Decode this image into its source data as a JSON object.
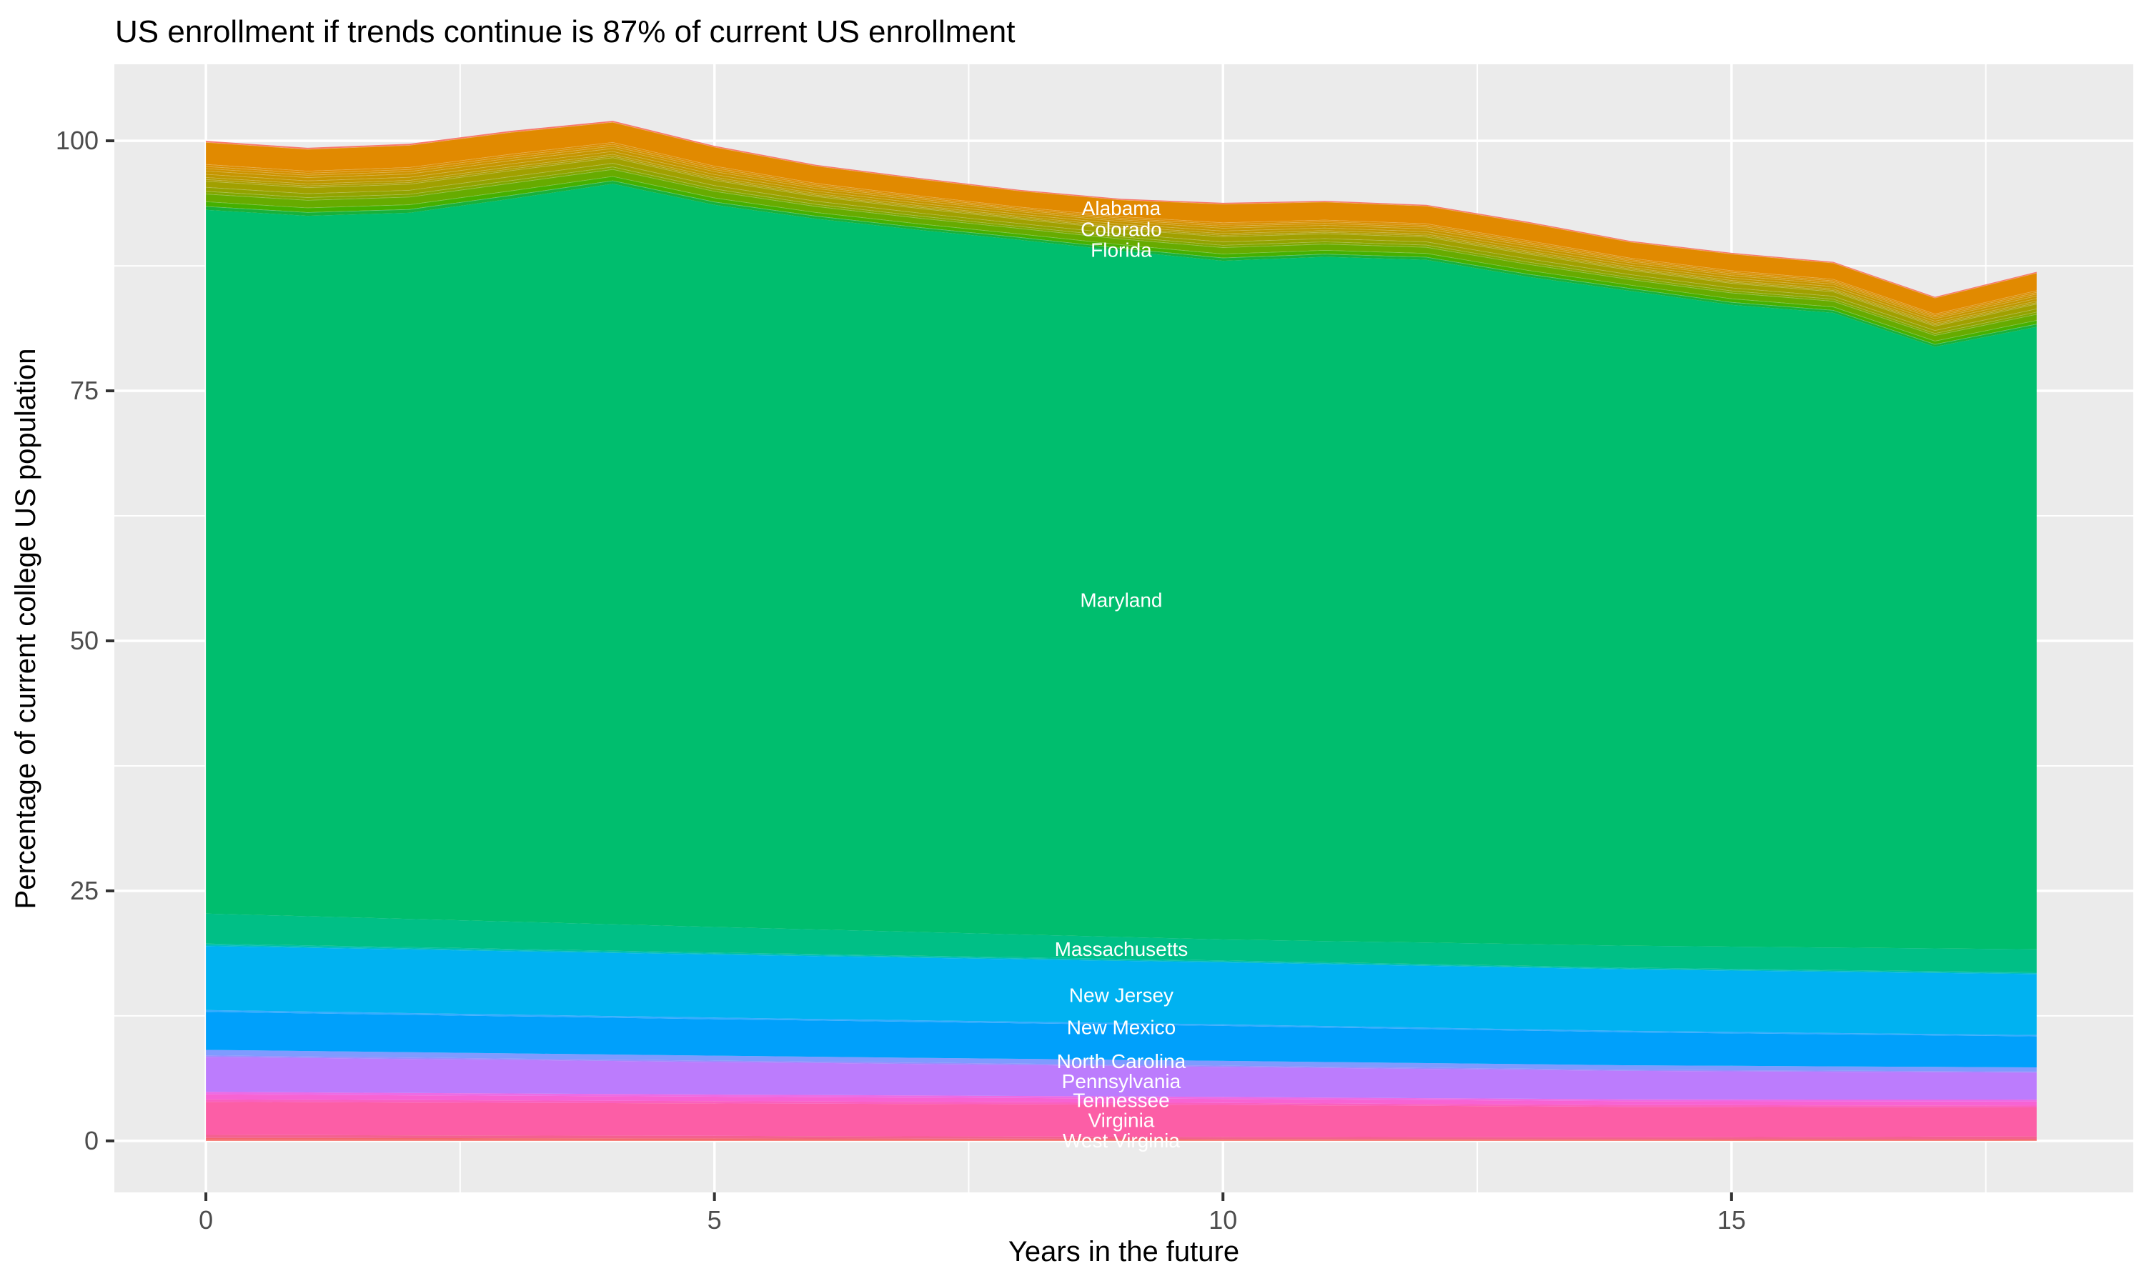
{
  "chart_data": {
    "type": "area",
    "title": "US enrollment if trends continue is 87% of current US enrollment",
    "xlabel": "Years in the future",
    "ylabel": "Percentage of current college US population",
    "x_ticks": [
      0,
      5,
      10,
      15
    ],
    "y_ticks": [
      0,
      25,
      50,
      75,
      100
    ],
    "x_minor": [
      2.5,
      7.5,
      12.5,
      17.5
    ],
    "y_minor": [
      12.5,
      37.5,
      62.5,
      87.5
    ],
    "xlim": [
      -0.9,
      18.95
    ],
    "ylim": [
      -5.15,
      107.65
    ],
    "grid": "on",
    "legend": "none",
    "x": [
      0,
      1,
      2,
      3,
      4,
      5,
      6,
      7,
      8,
      9,
      10,
      11,
      12,
      13,
      14,
      15,
      16,
      17,
      18
    ],
    "total_top": [
      100.0,
      99.3,
      99.7,
      101.0,
      102.0,
      99.5,
      97.6,
      96.3,
      95.1,
      94.2,
      93.8,
      94.0,
      93.6,
      91.9,
      90.0,
      88.8,
      87.9,
      84.4,
      86.9
    ],
    "maryland_top": [
      93.1,
      92.5,
      92.8,
      94.2,
      95.7,
      93.6,
      92.2,
      91.1,
      90.1,
      89.0,
      88.0,
      88.4,
      88.1,
      86.4,
      85.0,
      83.6,
      82.8,
      79.4,
      81.4
    ],
    "maryland_color": "#00BE6E",
    "lower_bands_bottom_to_top": [
      {
        "name": "wyoming-wisconsin-strip",
        "color": "#F8766D",
        "anchor_t": [
          0,
          5,
          10,
          14,
          18
        ],
        "thickness": [
          0.12,
          0.1,
          0.08,
          0.07,
          0.06
        ]
      },
      {
        "name": "west-virginia",
        "color": "#F5656F",
        "anchor_t": [
          0,
          5,
          10,
          14,
          18
        ],
        "thickness": [
          0.18,
          0.15,
          0.12,
          0.11,
          0.14
        ]
      },
      {
        "name": "washington-strip",
        "color": "#F4618F",
        "anchor_t": [
          0,
          5,
          10,
          14,
          18
        ],
        "thickness": [
          0.3,
          0.25,
          0.2,
          0.18,
          0.25
        ]
      },
      {
        "name": "virginia",
        "color": "#FC5EA6",
        "anchor_t": [
          0,
          5,
          10,
          14,
          18
        ],
        "thickness": [
          3.3,
          3.25,
          3.2,
          3.05,
          2.9
        ]
      },
      {
        "name": "texas-utah-vermont-strip",
        "color": "#FA60BE",
        "anchor_t": [
          0,
          5,
          10,
          14,
          18
        ],
        "thickness": [
          0.25,
          0.22,
          0.2,
          0.18,
          0.18
        ]
      },
      {
        "name": "tennessee",
        "color": "#F763D3",
        "anchor_t": [
          0,
          5,
          10,
          14,
          18
        ],
        "thickness": [
          0.5,
          0.45,
          0.4,
          0.38,
          0.4
        ]
      },
      {
        "name": "rhode-island-sc-sd-strip",
        "color": "#ED6BE5",
        "anchor_t": [
          0,
          5,
          10,
          14,
          18
        ],
        "thickness": [
          0.25,
          0.22,
          0.2,
          0.18,
          0.2
        ]
      },
      {
        "name": "pennsylvania",
        "color": "#BC7CFD",
        "anchor_t": [
          0,
          5,
          10,
          14,
          18
        ],
        "thickness": [
          3.5,
          3.25,
          3.0,
          2.85,
          2.7
        ]
      },
      {
        "name": "north-dakota-ohio-strip",
        "color": "#9B8DFF",
        "anchor_t": [
          0,
          5,
          10,
          14,
          18
        ],
        "thickness": [
          0.15,
          0.13,
          0.12,
          0.11,
          0.1
        ]
      },
      {
        "name": "north-carolina",
        "color": "#7F9BFF",
        "anchor_t": [
          0,
          5,
          10,
          14,
          18
        ],
        "thickness": [
          0.55,
          0.5,
          0.48,
          0.45,
          0.42
        ]
      },
      {
        "name": "new-york-band",
        "color": "#00A0FB",
        "anchor_t": [
          0,
          5,
          10,
          14,
          18
        ],
        "thickness": [
          3.8,
          3.65,
          3.5,
          3.3,
          3.1
        ]
      },
      {
        "name": "new-mexico",
        "color": "#38ACFF",
        "anchor_t": [
          0,
          5,
          10,
          14,
          18
        ],
        "thickness": [
          0.18,
          0.16,
          0.15,
          0.14,
          0.13
        ]
      },
      {
        "name": "new-jersey",
        "color": "#00B2F1",
        "anchor_t": [
          0,
          5,
          10,
          14,
          18
        ],
        "thickness": [
          6.4,
          6.3,
          6.2,
          6.15,
          6.1
        ]
      },
      {
        "name": "nevada-new-hampshire-strip",
        "color": "#00BDC6",
        "anchor_t": [
          0,
          5,
          10,
          14,
          18
        ],
        "thickness": [
          0.12,
          0.1,
          0.09,
          0.08,
          0.08
        ]
      },
      {
        "name": "michigan-minnesota-strip",
        "color": "#00C0A4",
        "anchor_t": [
          0,
          5,
          10,
          14,
          18
        ],
        "thickness": [
          0.13,
          0.11,
          0.1,
          0.09,
          0.09
        ]
      },
      {
        "name": "massachusetts",
        "color": "#00BF86",
        "anchor_t": [
          0,
          5,
          10,
          14,
          18
        ],
        "thickness": [
          3.0,
          2.55,
          2.1,
          2.2,
          2.3
        ]
      }
    ],
    "upper_bands_top_to_bottom": [
      {
        "name": "top-edge-strip",
        "color": "#F8766D",
        "fraction": 0.02
      },
      {
        "name": "alabama",
        "color": "#E18A00",
        "fraction": 0.32
      },
      {
        "name": "alaska-strip",
        "color": "#DB8D00",
        "fraction": 0.03
      },
      {
        "name": "arizona-strip",
        "color": "#D59000",
        "fraction": 0.03
      },
      {
        "name": "arkansas-strip",
        "color": "#CE9300",
        "fraction": 0.035
      },
      {
        "name": "california-strip",
        "color": "#C69500",
        "fraction": 0.048
      },
      {
        "name": "colorado",
        "color": "#BE9800",
        "fraction": 0.045
      },
      {
        "name": "connecticut-strip",
        "color": "#B59B00",
        "fraction": 0.03
      },
      {
        "name": "delaware-strip",
        "color": "#AB9D00",
        "fraction": 0.025
      },
      {
        "name": "florida",
        "color": "#A1A000",
        "fraction": 0.088
      },
      {
        "name": "georgia-strip",
        "color": "#92A300",
        "fraction": 0.058
      },
      {
        "name": "hawaii-idaho-strip",
        "color": "#81A700",
        "fraction": 0.04
      },
      {
        "name": "illinois-kansas-strip",
        "color": "#67AB00",
        "fraction": 0.111
      },
      {
        "name": "kentucky-strip",
        "color": "#45B000",
        "fraction": 0.068
      },
      {
        "name": "louisiana-maine-strip",
        "color": "#18B13A",
        "fraction": 0.052
      }
    ],
    "labels": [
      {
        "text": "Alabama",
        "t": 9.0,
        "v": 93.3
      },
      {
        "text": "Colorado",
        "t": 9.0,
        "v": 91.2
      },
      {
        "text": "Florida",
        "t": 9.0,
        "v": 89.1
      },
      {
        "text": "Maryland",
        "t": 9.0,
        "v": 54.1
      },
      {
        "text": "Massachusetts",
        "t": 9.0,
        "v": 19.2
      },
      {
        "text": "New Jersey",
        "t": 9.0,
        "v": 14.6
      },
      {
        "text": "New Mexico",
        "t": 9.0,
        "v": 11.4
      },
      {
        "text": "North Carolina",
        "t": 9.0,
        "v": 8.0
      },
      {
        "text": "Pennsylvania",
        "t": 9.0,
        "v": 6.0
      },
      {
        "text": "Tennessee",
        "t": 9.0,
        "v": 4.1
      },
      {
        "text": "Virginia",
        "t": 9.0,
        "v": 2.1
      },
      {
        "text": "West Virginia",
        "t": 9.0,
        "v": 0.05
      }
    ],
    "colors": {
      "panel_background": "#EBEBEB",
      "gridline": "#FFFFFF",
      "tick_mark": "#333333",
      "tick_text": "#4D4D4D",
      "title_text": "#000000",
      "area_label_text": "#FFFFFF"
    }
  }
}
